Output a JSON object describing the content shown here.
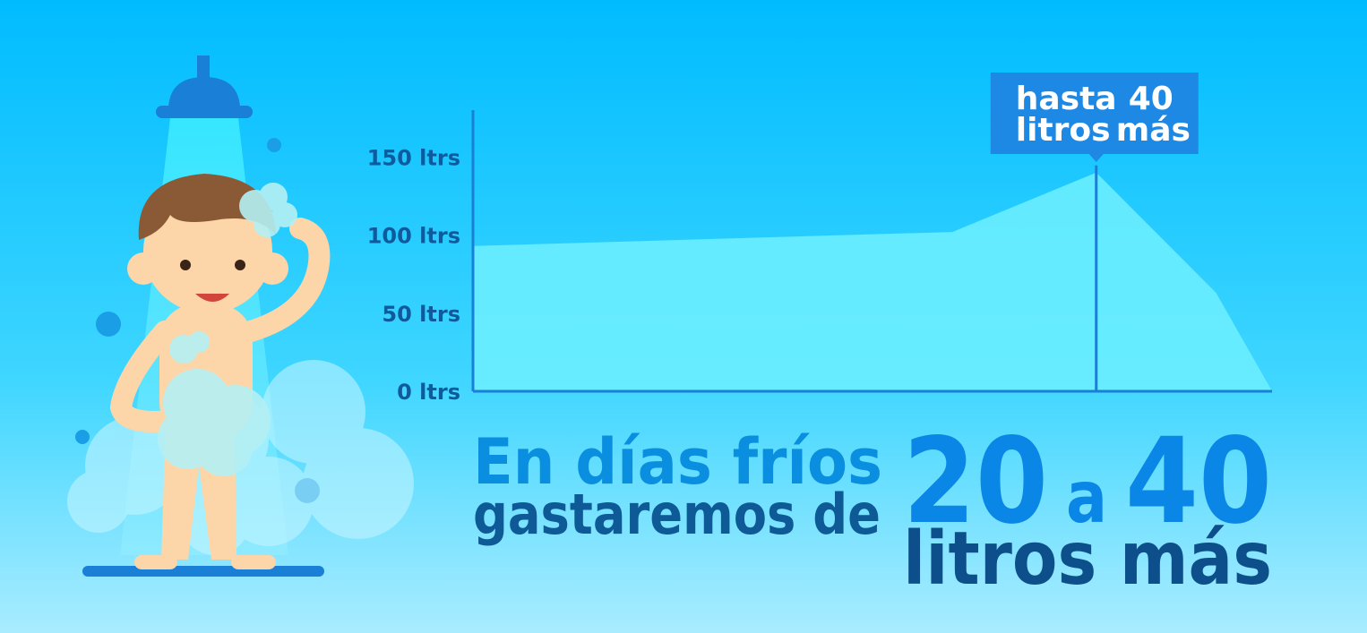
{
  "chart_data": {
    "type": "area",
    "x": [
      0,
      60,
      78,
      93,
      100
    ],
    "xlim": [
      0,
      100
    ],
    "values": [
      93,
      102,
      140,
      63,
      0
    ],
    "color": "#6ef0ff",
    "ylim": [
      0,
      180
    ],
    "yticks": [
      {
        "value": 0,
        "label": "0 ltrs"
      },
      {
        "value": 50,
        "label": "50 ltrs"
      },
      {
        "value": 100,
        "label": "100 ltrs"
      },
      {
        "value": 150,
        "label": "150 ltrs"
      }
    ],
    "annotation": {
      "index": 2,
      "parts": [
        "hasta",
        "40",
        "litros",
        "más"
      ]
    }
  },
  "headline": {
    "line1": "En días fríos",
    "line2": "gastaremos de",
    "from": 20,
    "joiner": "a",
    "to": 40,
    "unit": "litros más"
  }
}
